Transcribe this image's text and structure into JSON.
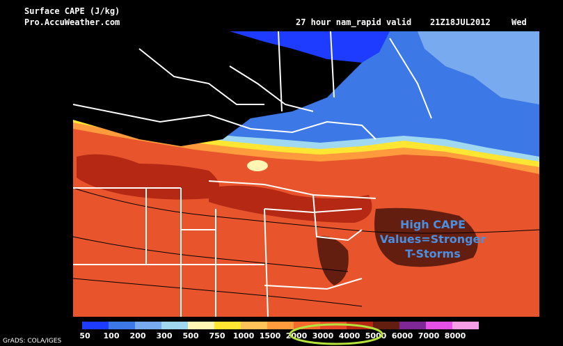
{
  "header": {
    "title": "Surface CAPE (J/kg)",
    "source": "Pro.AccuWeather.com",
    "run": "27 hour nam_rapid valid",
    "valid_time": "21Z18JUL2012",
    "day": "Wed"
  },
  "annotation": {
    "lines": [
      "High CAPE",
      "Values=Stronger",
      "T-Storms"
    ]
  },
  "legend": {
    "items": [
      {
        "label": "50",
        "color": "#1e3cff"
      },
      {
        "label": "100",
        "color": "#3c78e6"
      },
      {
        "label": "200",
        "color": "#78aaf0"
      },
      {
        "label": "300",
        "color": "#a0d8f0"
      },
      {
        "label": "500",
        "color": "#fff6b4"
      },
      {
        "label": "750",
        "color": "#ffe632"
      },
      {
        "label": "1000",
        "color": "#ffc35a"
      },
      {
        "label": "1500",
        "color": "#ff9b3c"
      },
      {
        "label": "2000",
        "color": "#f5692d"
      },
      {
        "label": "3000",
        "color": "#e64628"
      },
      {
        "label": "4000",
        "color": "#b42814"
      },
      {
        "label": "5000",
        "color": "#641e0f"
      },
      {
        "label": "6000",
        "color": "#7d2896"
      },
      {
        "label": "7000",
        "color": "#e650e6"
      },
      {
        "label": "8000",
        "color": "#f5a0e6"
      }
    ]
  },
  "credit": "GrADS: COLA/IGES"
}
